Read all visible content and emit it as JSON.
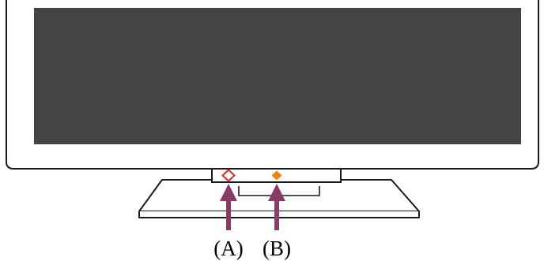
{
  "diagram": {
    "labels": {
      "a": "(A)",
      "b": "(B)"
    },
    "colors": {
      "outline": "#1a1a1a",
      "screen": "#444444",
      "background": "#ffffff",
      "indicator_a": "#e8242b",
      "indicator_b": "#f08300",
      "arrow": "#8a3a67"
    },
    "icons": {
      "indicator_a": "hollow-diamond-icon",
      "indicator_b": "solid-diamond-icon",
      "arrows": "up-arrow-icon"
    }
  }
}
